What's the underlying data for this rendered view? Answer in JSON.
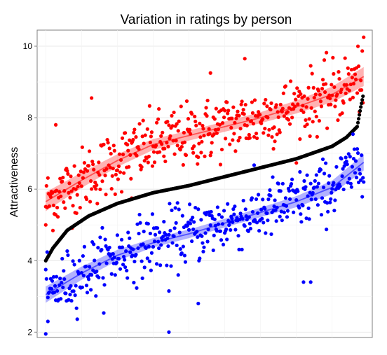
{
  "chart_data": {
    "type": "scatter",
    "title": "Variation in ratings by person",
    "xlabel": "",
    "ylabel": "Attractiveness",
    "ylim": [
      1.85,
      10.45
    ],
    "xlim": [
      -12,
      456
    ],
    "yticks": [
      2,
      4,
      6,
      8,
      10
    ],
    "grid": true,
    "legend": "none",
    "n_people": 444,
    "series": [
      {
        "color": "#ff0000",
        "smooth_trend": {
          "x": [
            0,
            50,
            100,
            150,
            200,
            250,
            300,
            350,
            400,
            444
          ],
          "y": [
            5.65,
            6.25,
            6.8,
            7.25,
            7.5,
            7.75,
            8.0,
            8.3,
            8.65,
            9.15
          ]
        },
        "band_halfwidth": 0.14,
        "noise_sd": 0.45,
        "notable_points": [
          [
            14,
            7.8
          ],
          [
            64,
            8.55
          ],
          [
            230,
            9.25
          ],
          [
            278,
            9.65
          ],
          [
            444,
            10.25
          ],
          [
            0,
            5.0
          ],
          [
            120,
            5.75
          ]
        ]
      },
      {
        "color": "#000000",
        "quantile_curve": {
          "x": [
            0,
            10,
            30,
            60,
            100,
            150,
            200,
            250,
            300,
            350,
            400,
            420,
            435,
            440,
            444
          ],
          "y": [
            4.0,
            4.35,
            4.85,
            5.25,
            5.6,
            5.9,
            6.1,
            6.35,
            6.6,
            6.85,
            7.2,
            7.45,
            7.75,
            8.3,
            8.7
          ]
        }
      },
      {
        "color": "#0000ff",
        "smooth_trend": {
          "x": [
            0,
            50,
            100,
            150,
            200,
            250,
            300,
            350,
            400,
            444
          ],
          "y": [
            3.05,
            3.65,
            4.15,
            4.5,
            4.75,
            5.05,
            5.35,
            5.65,
            6.05,
            6.75
          ]
        },
        "band_halfwidth": 0.12,
        "noise_sd": 0.42,
        "notable_points": [
          [
            0,
            1.95
          ],
          [
            172,
            2.0
          ],
          [
            3,
            2.3
          ],
          [
            213,
            2.8
          ],
          [
            360,
            3.4
          ],
          [
            370,
            3.4
          ],
          [
            172,
            3.15
          ],
          [
            444,
            6.2
          ]
        ]
      }
    ]
  }
}
